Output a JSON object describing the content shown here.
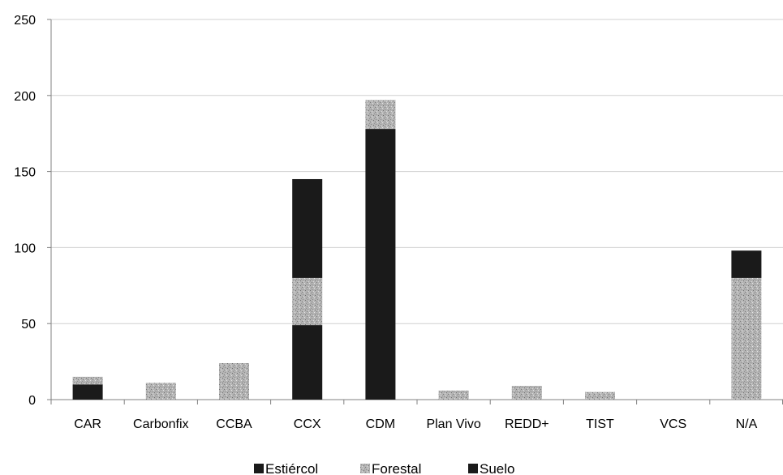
{
  "chart_data": {
    "type": "bar",
    "stacked": true,
    "title": "",
    "xlabel": "",
    "ylabel": "",
    "categories": [
      "CAR",
      "Carbonfix",
      "CCBA",
      "CCX",
      "CDM",
      "Plan Vivo",
      "REDD+",
      "TIST",
      "VCS",
      "N/A"
    ],
    "series": [
      {
        "name": "Estiércol",
        "values": [
          10,
          0,
          0,
          49,
          178,
          0,
          0,
          0,
          0,
          0
        ],
        "color": "#1a1a1a",
        "pattern": "solid"
      },
      {
        "name": "Forestal",
        "values": [
          5,
          11,
          24,
          31,
          19,
          6,
          9,
          5,
          0,
          80
        ],
        "color": "#a8a8a8",
        "pattern": "speckled"
      },
      {
        "name": "Suelo",
        "values": [
          0,
          0,
          0,
          65,
          0,
          0,
          0,
          0,
          0,
          18
        ],
        "color": "#1a1a1a",
        "pattern": "solid"
      }
    ],
    "ylim": [
      0,
      250
    ],
    "yticks": [
      0,
      50,
      100,
      150,
      200,
      250
    ],
    "grid": true,
    "legend": "bottom"
  }
}
